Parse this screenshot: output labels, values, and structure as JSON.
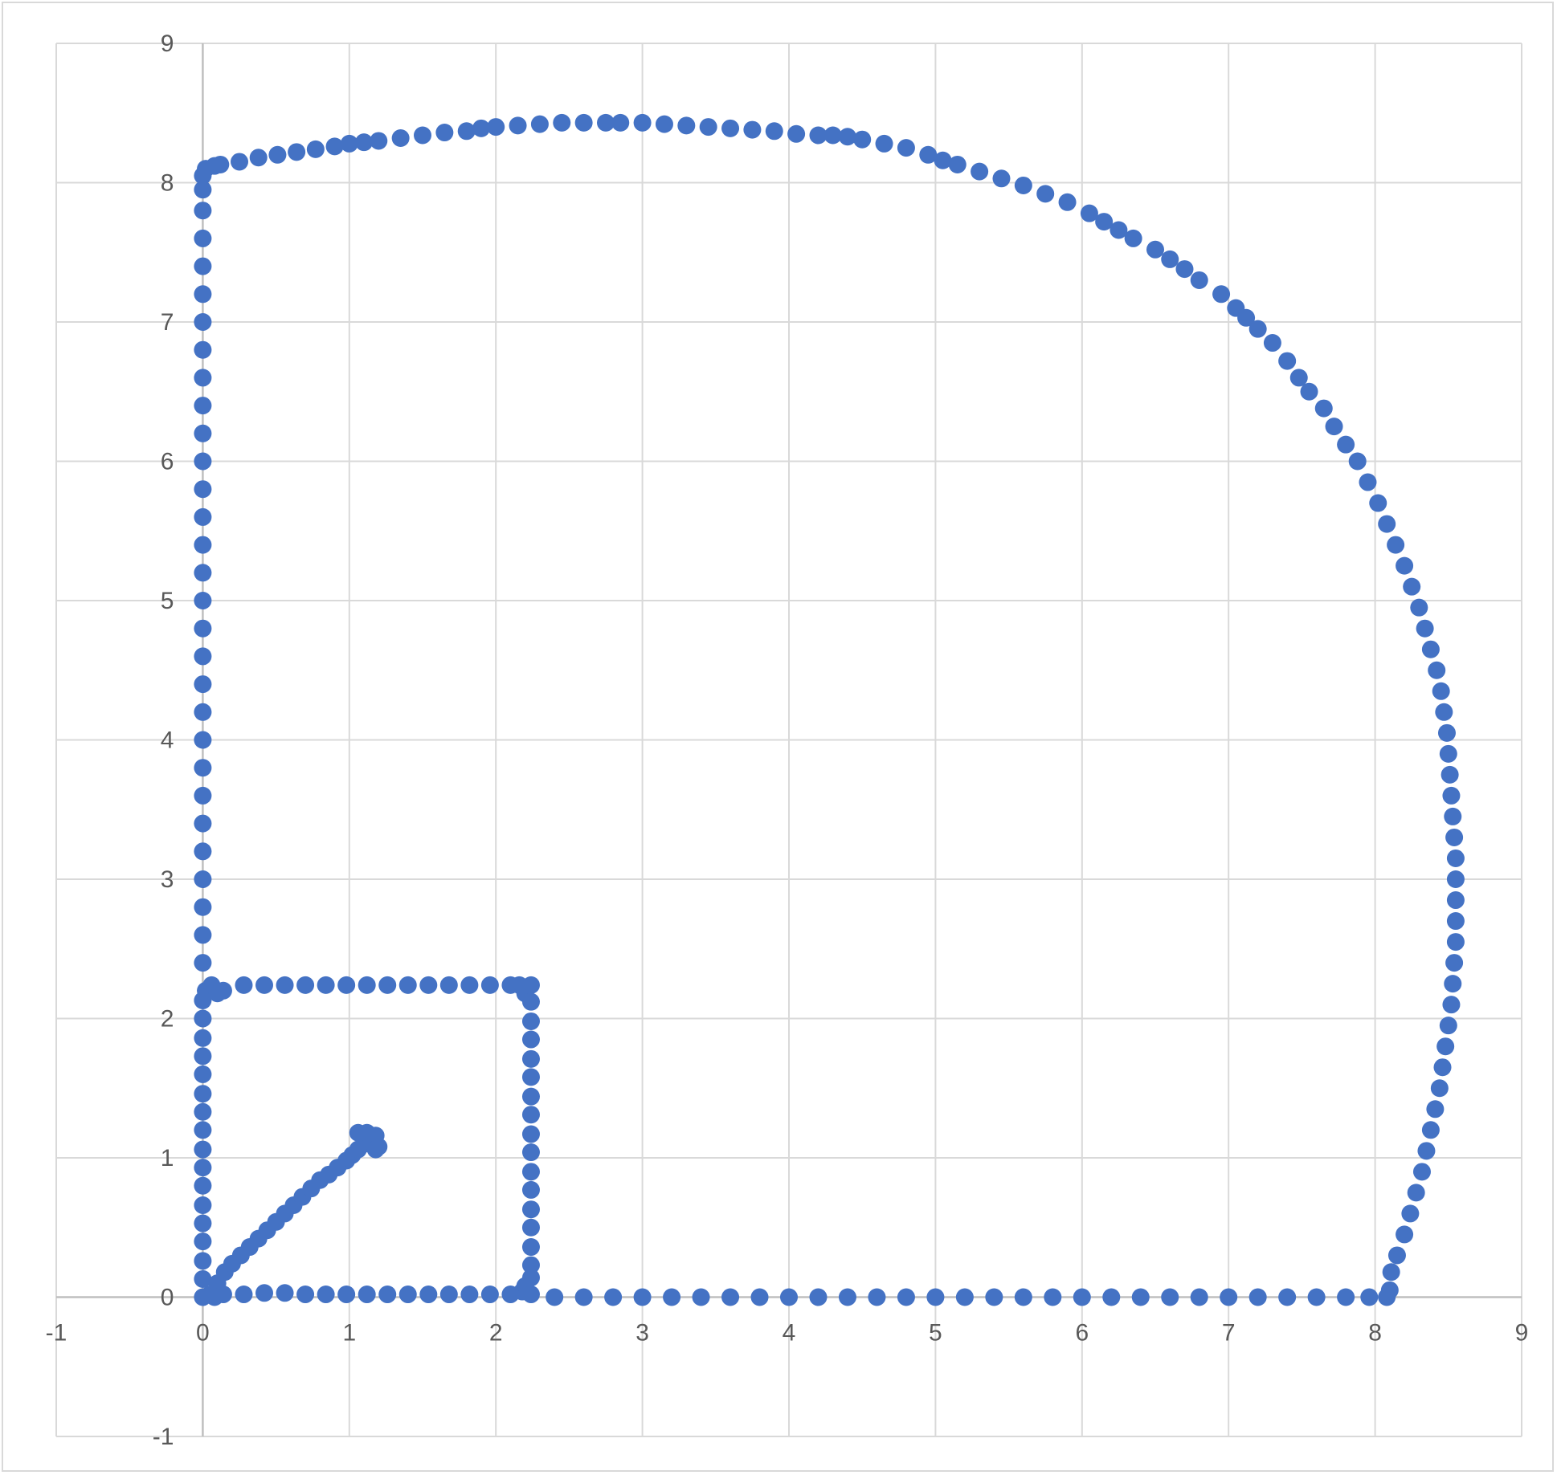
{
  "colors": {
    "marker": "#4472c4",
    "grid": "#d9d9d9",
    "axis": "#bfbfbf",
    "text": "#595959"
  },
  "chart_data": {
    "type": "scatter",
    "title": "",
    "xlabel": "",
    "ylabel": "",
    "xlim": [
      -1,
      9
    ],
    "ylim": [
      -1,
      9
    ],
    "x_ticks": [
      "-1",
      "0",
      "1",
      "2",
      "3",
      "4",
      "5",
      "6",
      "7",
      "8",
      "9"
    ],
    "y_ticks": [
      "-1",
      "0",
      "1",
      "2",
      "3",
      "4",
      "5",
      "6",
      "7",
      "8",
      "9"
    ],
    "grid": true,
    "legend": "none",
    "marker": "circle",
    "series": [
      {
        "description": "Blue circular markers forming golden-spiral style outline",
        "points": [
          [
            0.05,
            0.02
          ],
          [
            0.1,
            0.1
          ],
          [
            0.15,
            0.18
          ],
          [
            0.2,
            0.24
          ],
          [
            0.26,
            0.3
          ],
          [
            0.32,
            0.36
          ],
          [
            0.38,
            0.42
          ],
          [
            0.44,
            0.48
          ],
          [
            0.5,
            0.54
          ],
          [
            0.56,
            0.6
          ],
          [
            0.62,
            0.66
          ],
          [
            0.68,
            0.72
          ],
          [
            0.74,
            0.78
          ],
          [
            0.8,
            0.84
          ],
          [
            0.86,
            0.88
          ],
          [
            0.92,
            0.93
          ],
          [
            0.98,
            0.98
          ],
          [
            1.02,
            1.02
          ],
          [
            1.06,
            1.06
          ],
          [
            1.1,
            1.1
          ],
          [
            1.14,
            1.12
          ],
          [
            1.18,
            1.16
          ],
          [
            1.12,
            1.18
          ],
          [
            1.06,
            1.18
          ],
          [
            1.2,
            1.08
          ],
          [
            1.18,
            1.06
          ],
          [
            0.0,
            0.0
          ],
          [
            0.0,
            0.13
          ],
          [
            0.0,
            0.26
          ],
          [
            0.0,
            0.4
          ],
          [
            0.0,
            0.53
          ],
          [
            0.0,
            0.66
          ],
          [
            0.0,
            0.8
          ],
          [
            0.0,
            0.93
          ],
          [
            0.0,
            1.06
          ],
          [
            0.0,
            1.2
          ],
          [
            0.0,
            1.33
          ],
          [
            0.0,
            1.46
          ],
          [
            0.0,
            1.6
          ],
          [
            0.0,
            1.73
          ],
          [
            0.0,
            1.86
          ],
          [
            0.0,
            2.0
          ],
          [
            0.0,
            2.13
          ],
          [
            0.02,
            2.2
          ],
          [
            0.06,
            2.24
          ],
          [
            0.1,
            2.18
          ],
          [
            0.14,
            2.2
          ],
          [
            0.28,
            2.24
          ],
          [
            0.42,
            2.24
          ],
          [
            0.56,
            2.24
          ],
          [
            0.7,
            2.24
          ],
          [
            0.84,
            2.24
          ],
          [
            0.98,
            2.24
          ],
          [
            1.12,
            2.24
          ],
          [
            1.26,
            2.24
          ],
          [
            1.4,
            2.24
          ],
          [
            1.54,
            2.24
          ],
          [
            1.68,
            2.24
          ],
          [
            1.82,
            2.24
          ],
          [
            1.96,
            2.24
          ],
          [
            2.1,
            2.24
          ],
          [
            2.16,
            2.24
          ],
          [
            2.2,
            2.18
          ],
          [
            2.24,
            2.24
          ],
          [
            2.24,
            2.12
          ],
          [
            2.24,
            1.98
          ],
          [
            2.24,
            1.85
          ],
          [
            2.24,
            1.71
          ],
          [
            2.24,
            1.58
          ],
          [
            2.24,
            1.44
          ],
          [
            2.24,
            1.31
          ],
          [
            2.24,
            1.17
          ],
          [
            2.24,
            1.04
          ],
          [
            2.24,
            0.9
          ],
          [
            2.24,
            0.77
          ],
          [
            2.24,
            0.63
          ],
          [
            2.24,
            0.5
          ],
          [
            2.24,
            0.36
          ],
          [
            2.24,
            0.23
          ],
          [
            2.24,
            0.14
          ],
          [
            2.2,
            0.08
          ],
          [
            2.18,
            0.04
          ],
          [
            2.24,
            0.02
          ],
          [
            2.1,
            0.02
          ],
          [
            1.96,
            0.02
          ],
          [
            1.82,
            0.02
          ],
          [
            1.68,
            0.02
          ],
          [
            1.54,
            0.02
          ],
          [
            1.4,
            0.02
          ],
          [
            1.26,
            0.02
          ],
          [
            1.12,
            0.02
          ],
          [
            0.98,
            0.02
          ],
          [
            0.84,
            0.02
          ],
          [
            0.7,
            0.02
          ],
          [
            0.56,
            0.03
          ],
          [
            0.42,
            0.03
          ],
          [
            0.28,
            0.02
          ],
          [
            0.14,
            0.02
          ],
          [
            0.08,
            0.0
          ],
          [
            2.4,
            0.0
          ],
          [
            2.6,
            0.0
          ],
          [
            2.8,
            0.0
          ],
          [
            3.0,
            0.0
          ],
          [
            3.2,
            0.0
          ],
          [
            3.4,
            0.0
          ],
          [
            3.6,
            0.0
          ],
          [
            3.8,
            0.0
          ],
          [
            4.0,
            0.0
          ],
          [
            4.2,
            0.0
          ],
          [
            4.4,
            0.0
          ],
          [
            4.6,
            0.0
          ],
          [
            4.8,
            0.0
          ],
          [
            5.0,
            0.0
          ],
          [
            5.2,
            0.0
          ],
          [
            5.4,
            0.0
          ],
          [
            5.6,
            0.0
          ],
          [
            5.8,
            0.0
          ],
          [
            6.0,
            0.0
          ],
          [
            6.2,
            0.0
          ],
          [
            6.4,
            0.0
          ],
          [
            6.6,
            0.0
          ],
          [
            6.8,
            0.0
          ],
          [
            7.0,
            0.0
          ],
          [
            7.2,
            0.0
          ],
          [
            7.4,
            0.0
          ],
          [
            7.6,
            0.0
          ],
          [
            7.8,
            0.0
          ],
          [
            7.96,
            0.0
          ],
          [
            8.08,
            0.0
          ],
          [
            8.1,
            0.05
          ],
          [
            0.0,
            2.4
          ],
          [
            0.0,
            2.6
          ],
          [
            0.0,
            2.8
          ],
          [
            0.0,
            3.0
          ],
          [
            0.0,
            3.2
          ],
          [
            0.0,
            3.4
          ],
          [
            0.0,
            3.6
          ],
          [
            0.0,
            3.8
          ],
          [
            0.0,
            4.0
          ],
          [
            0.0,
            4.2
          ],
          [
            0.0,
            4.4
          ],
          [
            0.0,
            4.6
          ],
          [
            0.0,
            4.8
          ],
          [
            0.0,
            5.0
          ],
          [
            0.0,
            5.2
          ],
          [
            0.0,
            5.4
          ],
          [
            0.0,
            5.6
          ],
          [
            0.0,
            5.8
          ],
          [
            0.0,
            6.0
          ],
          [
            0.0,
            6.2
          ],
          [
            0.0,
            6.4
          ],
          [
            0.0,
            6.6
          ],
          [
            0.0,
            6.8
          ],
          [
            0.0,
            7.0
          ],
          [
            0.0,
            7.2
          ],
          [
            0.0,
            7.4
          ],
          [
            0.0,
            7.6
          ],
          [
            0.0,
            7.8
          ],
          [
            0.0,
            7.95
          ],
          [
            0.0,
            8.05
          ],
          [
            0.02,
            8.1
          ],
          [
            0.08,
            8.12
          ],
          [
            0.12,
            8.13
          ],
          [
            0.25,
            8.15
          ],
          [
            0.38,
            8.18
          ],
          [
            0.51,
            8.2
          ],
          [
            0.64,
            8.22
          ],
          [
            0.77,
            8.24
          ],
          [
            0.9,
            8.26
          ],
          [
            1.0,
            8.28
          ],
          [
            1.1,
            8.29
          ],
          [
            1.2,
            8.3
          ],
          [
            1.35,
            8.32
          ],
          [
            1.5,
            8.34
          ],
          [
            1.65,
            8.36
          ],
          [
            1.8,
            8.37
          ],
          [
            1.9,
            8.39
          ],
          [
            2.0,
            8.4
          ],
          [
            2.15,
            8.41
          ],
          [
            2.3,
            8.42
          ],
          [
            2.45,
            8.43
          ],
          [
            2.6,
            8.43
          ],
          [
            2.75,
            8.43
          ],
          [
            2.85,
            8.43
          ],
          [
            3.0,
            8.43
          ],
          [
            3.15,
            8.42
          ],
          [
            3.3,
            8.41
          ],
          [
            3.45,
            8.4
          ],
          [
            3.6,
            8.39
          ],
          [
            3.75,
            8.38
          ],
          [
            3.9,
            8.37
          ],
          [
            4.05,
            8.35
          ],
          [
            4.2,
            8.34
          ],
          [
            4.3,
            8.34
          ],
          [
            4.4,
            8.33
          ],
          [
            4.5,
            8.31
          ],
          [
            4.65,
            8.28
          ],
          [
            4.8,
            8.25
          ],
          [
            4.95,
            8.2
          ],
          [
            5.05,
            8.16
          ],
          [
            5.15,
            8.13
          ],
          [
            5.3,
            8.08
          ],
          [
            5.45,
            8.03
          ],
          [
            5.6,
            7.98
          ],
          [
            5.75,
            7.92
          ],
          [
            5.9,
            7.86
          ],
          [
            6.05,
            7.78
          ],
          [
            6.15,
            7.72
          ],
          [
            6.25,
            7.66
          ],
          [
            6.35,
            7.6
          ],
          [
            6.5,
            7.52
          ],
          [
            6.6,
            7.45
          ],
          [
            6.7,
            7.38
          ],
          [
            6.8,
            7.3
          ],
          [
            6.95,
            7.2
          ],
          [
            7.05,
            7.1
          ],
          [
            7.12,
            7.03
          ],
          [
            7.2,
            6.95
          ],
          [
            7.3,
            6.85
          ],
          [
            7.4,
            6.72
          ],
          [
            7.48,
            6.6
          ],
          [
            7.55,
            6.5
          ],
          [
            7.65,
            6.38
          ],
          [
            7.72,
            6.25
          ],
          [
            7.8,
            6.12
          ],
          [
            7.88,
            6.0
          ],
          [
            7.95,
            5.85
          ],
          [
            8.02,
            5.7
          ],
          [
            8.08,
            5.55
          ],
          [
            8.14,
            5.4
          ],
          [
            8.2,
            5.25
          ],
          [
            8.25,
            5.1
          ],
          [
            8.3,
            4.95
          ],
          [
            8.34,
            4.8
          ],
          [
            8.38,
            4.65
          ],
          [
            8.42,
            4.5
          ],
          [
            8.45,
            4.35
          ],
          [
            8.47,
            4.2
          ],
          [
            8.49,
            4.05
          ],
          [
            8.5,
            3.9
          ],
          [
            8.51,
            3.75
          ],
          [
            8.52,
            3.6
          ],
          [
            8.53,
            3.45
          ],
          [
            8.54,
            3.3
          ],
          [
            8.55,
            3.15
          ],
          [
            8.55,
            3.0
          ],
          [
            8.55,
            2.85
          ],
          [
            8.55,
            2.7
          ],
          [
            8.55,
            2.55
          ],
          [
            8.54,
            2.4
          ],
          [
            8.53,
            2.25
          ],
          [
            8.52,
            2.1
          ],
          [
            8.5,
            1.95
          ],
          [
            8.48,
            1.8
          ],
          [
            8.46,
            1.65
          ],
          [
            8.44,
            1.5
          ],
          [
            8.41,
            1.35
          ],
          [
            8.38,
            1.2
          ],
          [
            8.35,
            1.05
          ],
          [
            8.32,
            0.9
          ],
          [
            8.28,
            0.75
          ],
          [
            8.24,
            0.6
          ],
          [
            8.2,
            0.45
          ],
          [
            8.15,
            0.3
          ],
          [
            8.11,
            0.18
          ]
        ]
      }
    ]
  }
}
